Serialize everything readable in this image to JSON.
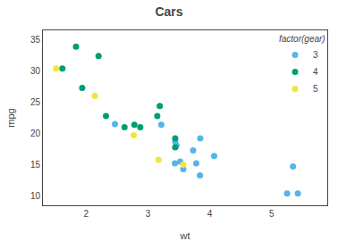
{
  "chart_data": {
    "type": "scatter",
    "title": "Cars",
    "x_label": "wt",
    "y_label": "mpg",
    "background_color": "#ffffff",
    "legend_title": "factor(gear)",
    "legend": "upper right",
    "grid": false,
    "marker": "circle",
    "series": [
      {
        "name": "3",
        "color": "#56B4E9",
        "x": [
          3.215,
          3.44,
          3.46,
          3.57,
          4.07,
          3.73,
          3.78,
          5.25,
          5.424,
          5.345,
          2.465,
          3.52,
          3.435,
          3.84,
          3.845
        ],
        "values": [
          21.4,
          18.7,
          18.1,
          14.3,
          16.4,
          17.3,
          15.2,
          10.4,
          10.4,
          14.7,
          21.5,
          15.5,
          15.2,
          13.3,
          19.2
        ]
      },
      {
        "name": "4",
        "color": "#009E73",
        "x": [
          2.62,
          2.875,
          2.32,
          3.19,
          3.15,
          3.44,
          3.44,
          2.2,
          1.615,
          1.835,
          1.935,
          2.78
        ],
        "values": [
          21.0,
          21.0,
          22.8,
          24.4,
          22.8,
          19.2,
          17.8,
          32.4,
          30.4,
          33.9,
          27.3,
          21.4
        ]
      },
      {
        "name": "5",
        "color": "#F0E442",
        "x": [
          2.14,
          1.513,
          3.17,
          2.77,
          3.57
        ],
        "values": [
          26.0,
          30.4,
          15.8,
          19.7,
          15.0
        ]
      }
    ],
    "xlim": [
      1.3,
      5.9
    ],
    "xticks": [
      2,
      3,
      4,
      5
    ],
    "ylim": [
      8.5,
      36.5
    ],
    "yticks": [
      10,
      15,
      20,
      25,
      30,
      35
    ]
  }
}
